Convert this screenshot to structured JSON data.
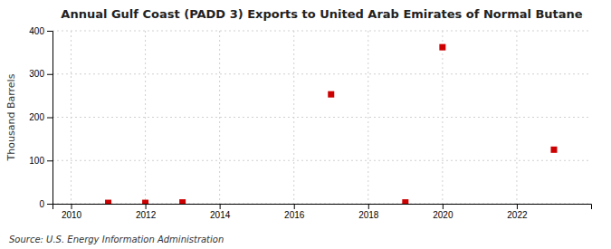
{
  "chart_data": {
    "type": "scatter",
    "title": "Annual Gulf Coast (PADD 3) Exports to United Arab Emirates of Normal Butane",
    "ylabel": "Thousand Barrels",
    "source": "Source: U.S. Energy Information Administration",
    "x": [
      2011,
      2012,
      2013,
      2017,
      2019,
      2020,
      2023
    ],
    "values": [
      2,
      2,
      3,
      253,
      3,
      362,
      125
    ],
    "color": "#cc0000",
    "marker": "square",
    "xlim": [
      2009.5,
      2024.0
    ],
    "ylim": [
      0,
      400
    ],
    "xticks": [
      2010,
      2012,
      2014,
      2016,
      2018,
      2020,
      2022
    ],
    "yticks": [
      0,
      100,
      200,
      300,
      400
    ],
    "grid": true
  }
}
